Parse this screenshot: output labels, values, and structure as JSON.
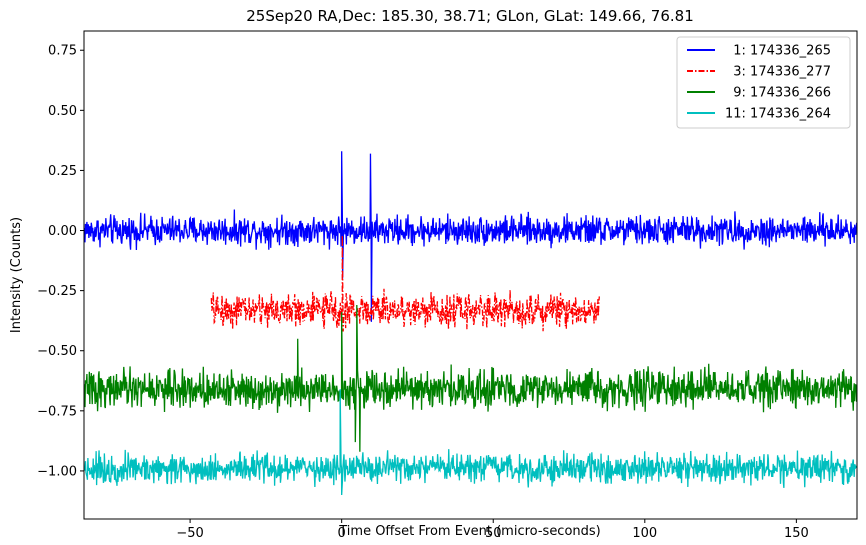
{
  "chart_data": {
    "type": "line",
    "title": "25Sep20 RA,Dec:  185.30,  38.71; GLon, GLat:  149.66,  76.81",
    "xlabel": "Time Offset From Event (micro-seconds)",
    "ylabel": "Intensity (Counts)",
    "xlim": [
      -85,
      170
    ],
    "ylim": [
      -1.2,
      0.83
    ],
    "xticks": [
      -50,
      0,
      50,
      100,
      150
    ],
    "xtick_labels": [
      "−50",
      "0",
      "50",
      "100",
      "150"
    ],
    "yticks": [
      0.75,
      0.5,
      0.25,
      0.0,
      -0.25,
      -0.5,
      -0.75,
      -1.0
    ],
    "ytick_labels": [
      "0.75",
      "0.50",
      "0.25",
      "0.00",
      "−0.25",
      "−0.50",
      "−0.75",
      "−1.00"
    ],
    "grid": false,
    "legend_position": "top-right",
    "series": [
      {
        "name": "  1: 174336_265",
        "color": "#0000ff",
        "style": "solid",
        "x_range": [
          -85,
          170
        ],
        "baseline": 0.0,
        "noise_amplitude": 0.04,
        "spikes": [
          {
            "x": 0.0,
            "y": 0.33
          },
          {
            "x": 0.3,
            "y": -0.2
          },
          {
            "x": 9.5,
            "y": 0.32
          },
          {
            "x": 9.8,
            "y": -0.38
          }
        ]
      },
      {
        "name": "  3: 174336_277",
        "color": "#ff0000",
        "style": "dashdot",
        "x_range": [
          -43,
          85
        ],
        "baseline": -0.33,
        "noise_amplitude": 0.045,
        "spikes": [
          {
            "x": 0.2,
            "y": -0.02
          },
          {
            "x": 0.5,
            "y": -0.42
          }
        ]
      },
      {
        "name": "  9: 174336_266",
        "color": "#008000",
        "style": "solid",
        "x_range": [
          -85,
          170
        ],
        "baseline": -0.66,
        "noise_amplitude": 0.05,
        "spikes": [
          {
            "x": -14.5,
            "y": -0.45
          },
          {
            "x": 0.0,
            "y": -0.34
          },
          {
            "x": 5.0,
            "y": -0.31
          },
          {
            "x": 6.0,
            "y": -0.92
          },
          {
            "x": 4.5,
            "y": -0.88
          }
        ]
      },
      {
        "name": "11: 174336_264",
        "color": "#00bfbf",
        "style": "solid",
        "x_range": [
          -85,
          170
        ],
        "baseline": -0.99,
        "noise_amplitude": 0.04,
        "spikes": [
          {
            "x": -0.5,
            "y": -0.66
          },
          {
            "x": 0.0,
            "y": -1.1
          }
        ]
      }
    ]
  }
}
